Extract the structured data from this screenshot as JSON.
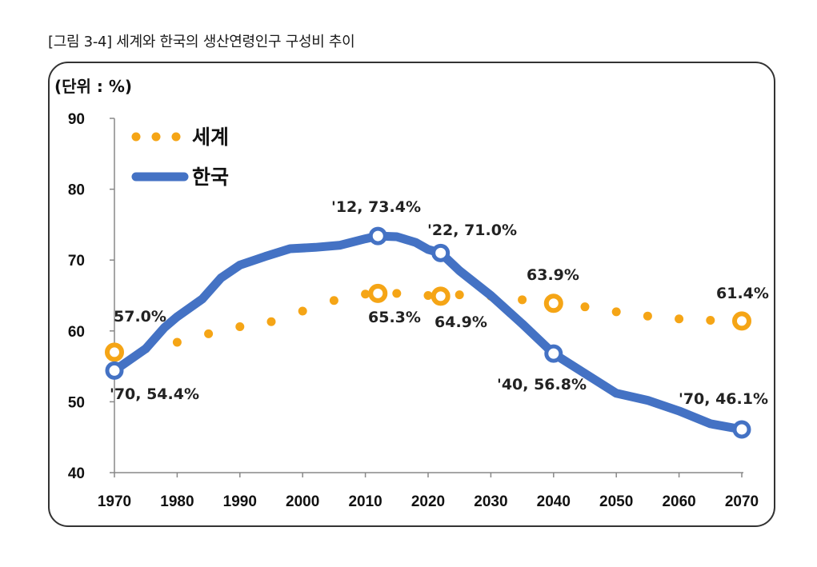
{
  "caption": "[그림 3-4] 세계와 한국의 생산연령인구 구성비 추이",
  "colors": {
    "world": "#F5A516",
    "korea": "#4472C4",
    "frame": "#333333"
  },
  "chart_data": {
    "type": "line",
    "unit_label": "(단위 : %)",
    "xlim": [
      1970,
      2070
    ],
    "ylim": [
      40,
      90
    ],
    "x_ticks": [
      "1970",
      "1980",
      "1990",
      "2000",
      "2010",
      "2020",
      "2030",
      "2040",
      "2050",
      "2060",
      "2070"
    ],
    "y_ticks": [
      "90",
      "80",
      "70",
      "60",
      "50",
      "40"
    ],
    "legend_position": "top-left",
    "series": [
      {
        "name": "세계",
        "style": "dotted",
        "x": [
          1970,
          1975,
          1980,
          1985,
          1990,
          1995,
          2000,
          2005,
          2010,
          2012,
          2015,
          2020,
          2022,
          2025,
          2030,
          2035,
          2040,
          2045,
          2050,
          2055,
          2060,
          2065,
          2070
        ],
        "y": [
          57.0,
          57.5,
          58.4,
          59.6,
          60.6,
          61.3,
          62.8,
          64.3,
          65.2,
          65.3,
          65.3,
          65.0,
          64.9,
          65.1,
          64.9,
          64.4,
          63.9,
          63.4,
          62.7,
          62.1,
          61.7,
          61.5,
          61.4
        ],
        "markers": [
          {
            "x": 1970,
            "y": 57.0,
            "label": "57.0%"
          },
          {
            "x": 2012,
            "y": 65.3,
            "label": "65.3%"
          },
          {
            "x": 2022,
            "y": 64.9,
            "label": "64.9%"
          },
          {
            "x": 2040,
            "y": 63.9,
            "label": "63.9%"
          },
          {
            "x": 2070,
            "y": 61.4,
            "label": "61.4%"
          }
        ]
      },
      {
        "name": "한국",
        "style": "solid",
        "x": [
          1970,
          1975,
          1978,
          1980,
          1984,
          1987,
          1990,
          1994,
          1998,
          2002,
          2006,
          2010,
          2012,
          2015,
          2018,
          2020,
          2022,
          2025,
          2030,
          2035,
          2040,
          2045,
          2050,
          2055,
          2060,
          2065,
          2070
        ],
        "y": [
          54.4,
          57.5,
          60.5,
          62.0,
          64.5,
          67.5,
          69.3,
          70.5,
          71.6,
          71.8,
          72.1,
          73.0,
          73.4,
          73.3,
          72.5,
          71.5,
          71.0,
          68.5,
          65.0,
          61.0,
          56.8,
          54.0,
          51.2,
          50.2,
          48.7,
          46.9,
          46.1
        ],
        "markers": [
          {
            "x": 1970,
            "y": 54.4,
            "label": "'70, 54.4%"
          },
          {
            "x": 2012,
            "y": 73.4,
            "label": "'12, 73.4%"
          },
          {
            "x": 2022,
            "y": 71.0,
            "label": "'22, 71.0%"
          },
          {
            "x": 2040,
            "y": 56.8,
            "label": "'40, 56.8%"
          },
          {
            "x": 2070,
            "y": 46.1,
            "label": "'70, 46.1%"
          }
        ]
      }
    ]
  }
}
